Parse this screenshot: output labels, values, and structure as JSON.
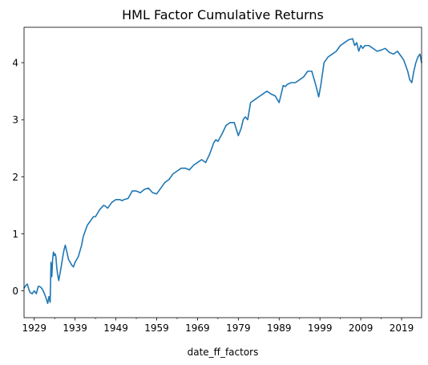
{
  "chart_data": {
    "type": "line",
    "title": "HML Factor Cumulative Returns",
    "xlabel": "date_ff_factors",
    "ylabel": "",
    "xlim": [
      1926.5,
      2023.9
    ],
    "ylim": [
      -0.47,
      4.62
    ],
    "x_ticks": [
      1929,
      1939,
      1949,
      1959,
      1969,
      1979,
      1989,
      1999,
      2009,
      2019
    ],
    "x_tick_labels": [
      "1929",
      "1939",
      "1949",
      "1959",
      "1969",
      "1979",
      "1989",
      "1999",
      "2009",
      "2019"
    ],
    "x_minor_ticks": [
      1934,
      1944,
      1954,
      1964,
      1974,
      1984,
      1994,
      2004,
      2014
    ],
    "y_ticks": [
      0,
      1,
      2,
      3,
      4
    ],
    "y_tick_labels": [
      "0",
      "1",
      "2",
      "3",
      "4"
    ],
    "grid": false,
    "legend": "none",
    "color": "#1f77b4",
    "series": [
      {
        "x": [
          1926.5,
          1927.0,
          1927.3,
          1927.7,
          1928.0,
          1928.5,
          1929.0,
          1929.5,
          1930.0,
          1930.5,
          1931.0,
          1931.5,
          1932.0,
          1932.3,
          1932.6,
          1932.9,
          1933.1,
          1933.3,
          1933.5,
          1933.7,
          1933.9,
          1934.1,
          1934.3,
          1934.5,
          1934.7,
          1935.0,
          1935.3,
          1935.6,
          1936.0,
          1936.3,
          1936.6,
          1937.0,
          1937.4,
          1937.8,
          1938.2,
          1938.6,
          1939.0,
          1939.4,
          1939.8,
          1940.2,
          1940.6,
          1941.0,
          1941.5,
          1942.0,
          1942.5,
          1943.0,
          1943.5,
          1944.0,
          1945.0,
          1946.0,
          1946.5,
          1947.0,
          1948.0,
          1949.0,
          1950.0,
          1950.5,
          1951.0,
          1952.0,
          1953.0,
          1954.0,
          1955.0,
          1956.0,
          1957.0,
          1958.0,
          1959.0,
          1960.0,
          1961.0,
          1962.0,
          1963.0,
          1964.0,
          1965.0,
          1966.0,
          1967.0,
          1968.0,
          1969.0,
          1970.0,
          1971.0,
          1972.0,
          1973.0,
          1973.5,
          1974.0,
          1975.0,
          1976.0,
          1977.0,
          1978.0,
          1979.0,
          1979.7,
          1980.2,
          1980.7,
          1981.3,
          1982.0,
          1983.0,
          1984.0,
          1985.0,
          1986.0,
          1987.0,
          1988.0,
          1989.0,
          1990.0,
          1990.5,
          1991.0,
          1992.0,
          1993.0,
          1994.0,
          1995.0,
          1996.0,
          1997.0,
          1998.0,
          1998.7,
          1999.2,
          1999.6,
          2000.0,
          2000.5,
          2001.0,
          2002.0,
          2003.0,
          2004.0,
          2005.0,
          2006.0,
          2007.0,
          2007.5,
          2008.0,
          2008.5,
          2009.0,
          2009.5,
          2010.0,
          2011.0,
          2012.0,
          2013.0,
          2014.0,
          2015.0,
          2016.0,
          2017.0,
          2018.0,
          2019.0,
          2019.5,
          2020.0,
          2020.5,
          2021.0,
          2021.5,
          2022.0,
          2022.5,
          2023.0,
          2023.5,
          2023.9
        ],
        "y": [
          0.05,
          0.1,
          0.12,
          0.02,
          -0.03,
          -0.05,
          0.0,
          -0.05,
          0.08,
          0.07,
          0.03,
          -0.05,
          -0.15,
          -0.22,
          -0.1,
          -0.2,
          0.5,
          0.25,
          0.55,
          0.68,
          0.62,
          0.65,
          0.6,
          0.42,
          0.3,
          0.18,
          0.3,
          0.42,
          0.6,
          0.72,
          0.8,
          0.68,
          0.55,
          0.5,
          0.45,
          0.42,
          0.5,
          0.55,
          0.6,
          0.7,
          0.8,
          0.95,
          1.05,
          1.15,
          1.2,
          1.25,
          1.3,
          1.3,
          1.42,
          1.5,
          1.48,
          1.45,
          1.55,
          1.6,
          1.6,
          1.58,
          1.6,
          1.62,
          1.75,
          1.75,
          1.72,
          1.78,
          1.8,
          1.72,
          1.7,
          1.8,
          1.9,
          1.95,
          2.05,
          2.1,
          2.15,
          2.15,
          2.12,
          2.2,
          2.25,
          2.3,
          2.25,
          2.4,
          2.6,
          2.65,
          2.62,
          2.75,
          2.9,
          2.95,
          2.95,
          2.72,
          2.85,
          3.0,
          3.05,
          3.0,
          3.3,
          3.35,
          3.4,
          3.45,
          3.5,
          3.45,
          3.42,
          3.3,
          3.6,
          3.58,
          3.62,
          3.65,
          3.65,
          3.7,
          3.75,
          3.85,
          3.85,
          3.6,
          3.4,
          3.6,
          3.8,
          4.0,
          4.05,
          4.1,
          4.15,
          4.2,
          4.3,
          4.35,
          4.4,
          4.42,
          4.3,
          4.35,
          4.2,
          4.3,
          4.25,
          4.3,
          4.3,
          4.25,
          4.2,
          4.22,
          4.25,
          4.18,
          4.15,
          4.2,
          4.1,
          4.05,
          3.95,
          3.85,
          3.7,
          3.65,
          3.85,
          4.0,
          4.1,
          4.15,
          4.0
        ]
      }
    ]
  }
}
